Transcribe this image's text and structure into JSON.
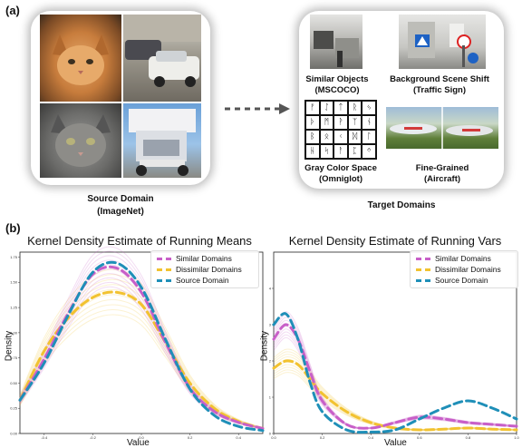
{
  "panel_a": {
    "label": "(a)",
    "source": {
      "caption_line1": "Source Domain",
      "caption_line2": "(ImageNet)"
    },
    "targets": {
      "similar_line1": "Similar Objects",
      "similar_line2": "(MSCOCO)",
      "background_line1": "Background Scene Shift",
      "background_line2": "(Traffic Sign)",
      "gray_line1": "Gray Color Space",
      "gray_line2": "(Omniglot)",
      "fine_line1": "Fine-Grained",
      "fine_line2": "(Aircraft)",
      "caption": "Target Domains"
    },
    "omniglot_glyphs": [
      "ᚠ",
      "ᛇ",
      "ᛏ",
      "ᚱ",
      "ᛃ",
      "ᚦ",
      "ᛗ",
      "ᚹ",
      "ᛉ",
      "ᚾ",
      "ᛒ",
      "ᛟ",
      "ᚲ",
      "ᛞ",
      "ᛚ",
      "ᚺ",
      "ᛋ",
      "ᚨ",
      "ᛈ",
      "ᛜ"
    ]
  },
  "panel_b": {
    "label": "(b)"
  },
  "chart_data": [
    {
      "type": "line",
      "title": "Kernel Density Estimate of Running Means",
      "xlabel": "Value",
      "ylabel": "Density",
      "xlim": [
        -0.5,
        0.5
      ],
      "ylim": [
        0,
        1.8
      ],
      "x_ticks": [
        "-0.4",
        "-0.2",
        "0.0",
        "0.2",
        "0.4"
      ],
      "y_ticks": [
        "0.00",
        "0.25",
        "0.50",
        "0.75",
        "1.00",
        "1.25",
        "1.50",
        "1.75"
      ],
      "legend": [
        "Similar Domains",
        "Dissimilar Domains",
        "Source Domain"
      ],
      "series": [
        {
          "name": "Similar Domains",
          "color": "#c85fc8",
          "x": [
            -0.5,
            -0.4,
            -0.3,
            -0.2,
            -0.1,
            0.0,
            0.1,
            0.2,
            0.3,
            0.4,
            0.5
          ],
          "values": [
            0.33,
            0.74,
            1.2,
            1.58,
            1.64,
            1.4,
            0.9,
            0.45,
            0.22,
            0.11,
            0.05
          ]
        },
        {
          "name": "Dissimilar Domains",
          "color": "#f2c230",
          "x": [
            -0.5,
            -0.4,
            -0.3,
            -0.2,
            -0.1,
            0.0,
            0.1,
            0.2,
            0.3,
            0.4,
            0.5
          ],
          "values": [
            0.33,
            0.82,
            1.15,
            1.35,
            1.4,
            1.28,
            0.9,
            0.5,
            0.25,
            0.12,
            0.05
          ]
        },
        {
          "name": "Source Domain",
          "color": "#1f8fb8",
          "x": [
            -0.5,
            -0.4,
            -0.3,
            -0.2,
            -0.1,
            0.0,
            0.1,
            0.2,
            0.3,
            0.4,
            0.5
          ],
          "values": [
            0.33,
            0.7,
            1.18,
            1.6,
            1.69,
            1.45,
            0.93,
            0.44,
            0.18,
            0.07,
            0.03
          ]
        }
      ]
    },
    {
      "type": "line",
      "title": "Kernel Density Estimate of Running Vars",
      "xlabel": "Value",
      "ylabel": "Density",
      "xlim": [
        0.0,
        1.0
      ],
      "ylim": [
        0,
        5.0
      ],
      "x_ticks": [
        "0.0",
        "0.2",
        "0.4",
        "0.6",
        "0.8",
        "1.0"
      ],
      "y_ticks": [
        "0",
        "1",
        "2",
        "3",
        "4"
      ],
      "legend": [
        "Similar Domains",
        "Dissimilar Domains",
        "Source Domain"
      ],
      "series": [
        {
          "name": "Similar Domains",
          "color": "#c85fc8",
          "x": [
            0.0,
            0.05,
            0.1,
            0.15,
            0.2,
            0.3,
            0.4,
            0.5,
            0.6,
            0.7,
            0.8,
            0.9,
            1.0
          ],
          "values": [
            2.6,
            3.0,
            2.6,
            1.7,
            0.9,
            0.25,
            0.15,
            0.3,
            0.45,
            0.4,
            0.3,
            0.25,
            0.2
          ]
        },
        {
          "name": "Dissimilar Domains",
          "color": "#f2c230",
          "x": [
            0.0,
            0.05,
            0.1,
            0.15,
            0.2,
            0.3,
            0.4,
            0.5,
            0.6,
            0.7,
            0.8,
            0.9,
            1.0
          ],
          "values": [
            1.8,
            2.0,
            1.9,
            1.5,
            1.1,
            0.6,
            0.3,
            0.15,
            0.1,
            0.12,
            0.15,
            0.12,
            0.1
          ]
        },
        {
          "name": "Source Domain",
          "color": "#1f8fb8",
          "x": [
            0.0,
            0.05,
            0.1,
            0.15,
            0.2,
            0.3,
            0.4,
            0.5,
            0.6,
            0.7,
            0.8,
            0.9,
            1.0
          ],
          "values": [
            3.0,
            3.3,
            2.6,
            1.4,
            0.6,
            0.1,
            0.04,
            0.1,
            0.4,
            0.7,
            0.9,
            0.7,
            0.4
          ]
        }
      ]
    }
  ]
}
